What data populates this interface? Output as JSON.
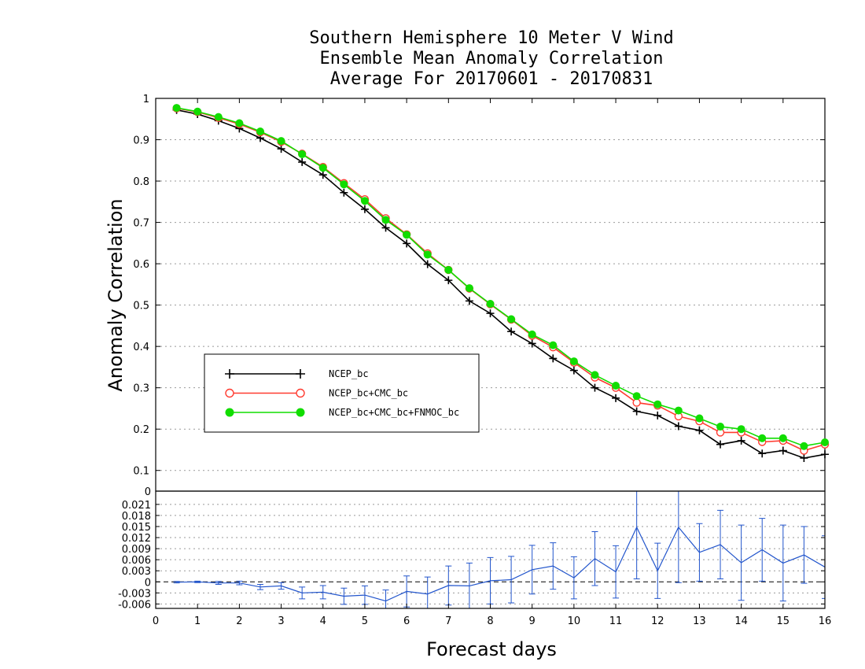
{
  "chart_data": [
    {
      "type": "line",
      "title_lines": [
        "Southern Hemisphere 10 Meter V Wind",
        "Ensemble Mean Anomaly Correlation",
        "Average For 20170601 - 20170831"
      ],
      "xlabel": "Forecast days",
      "ylabel": "Anomaly Correlation",
      "xlim": [
        0,
        16
      ],
      "ylim": [
        0.05,
        1
      ],
      "yticks": [
        "0.1",
        "0.2",
        "0.3",
        "0.4",
        "0.5",
        "0.6",
        "0.7",
        "0.8",
        "0.9",
        "1"
      ],
      "grid": true,
      "legend_position": "middle-left",
      "x": [
        0.5,
        1,
        1.5,
        2,
        2.5,
        3,
        3.5,
        4,
        4.5,
        5,
        5.5,
        6,
        6.5,
        7,
        7.5,
        8,
        8.5,
        9,
        9.5,
        10,
        10.5,
        11,
        11.5,
        12,
        12.5,
        13,
        13.5,
        14,
        14.5,
        15,
        15.5,
        16
      ],
      "series": [
        {
          "name": "NCEP_bc",
          "color": "#000000",
          "marker": "plus",
          "values": [
            0.972,
            0.962,
            0.946,
            0.927,
            0.904,
            0.878,
            0.846,
            0.815,
            0.772,
            0.732,
            0.687,
            0.649,
            0.599,
            0.56,
            0.51,
            0.48,
            0.436,
            0.407,
            0.371,
            0.342,
            0.3,
            0.275,
            0.243,
            0.233,
            0.207,
            0.197,
            0.163,
            0.172,
            0.141,
            0.148,
            0.13,
            0.139
          ]
        },
        {
          "name": "NCEP_bc+CMC_bc",
          "color": "#ff3b30",
          "marker": "open-circle",
          "values": [
            0.976,
            0.967,
            0.953,
            0.938,
            0.918,
            0.895,
            0.866,
            0.834,
            0.795,
            0.756,
            0.71,
            0.671,
            0.625,
            0.585,
            0.54,
            0.502,
            0.465,
            0.426,
            0.398,
            0.361,
            0.325,
            0.3,
            0.264,
            0.257,
            0.231,
            0.219,
            0.192,
            0.192,
            0.169,
            0.172,
            0.148,
            0.163
          ]
        },
        {
          "name": "NCEP_bc+CMC_bc+FNMOC_bc",
          "color": "#11dd00",
          "marker": "filled-circle",
          "values": [
            0.977,
            0.968,
            0.955,
            0.94,
            0.92,
            0.897,
            0.865,
            0.832,
            0.792,
            0.752,
            0.706,
            0.67,
            0.622,
            0.585,
            0.541,
            0.503,
            0.466,
            0.429,
            0.403,
            0.364,
            0.331,
            0.305,
            0.28,
            0.26,
            0.245,
            0.226,
            0.206,
            0.2,
            0.178,
            0.178,
            0.159,
            0.168
          ]
        }
      ]
    },
    {
      "type": "line",
      "xlabel": "Forecast days",
      "xlim": [
        0,
        16
      ],
      "ylim": [
        -0.0072,
        0.0246
      ],
      "xticks": [
        "0",
        "1",
        "2",
        "3",
        "4",
        "5",
        "6",
        "7",
        "8",
        "9",
        "10",
        "11",
        "12",
        "13",
        "14",
        "15",
        "16"
      ],
      "yticks": [
        {
          "value": 0.021,
          "label": "0.021"
        },
        {
          "value": 0.018,
          "label": "0.018"
        },
        {
          "value": 0.015,
          "label": "0.015"
        },
        {
          "value": 0.012,
          "label": "0.012"
        },
        {
          "value": 0.009,
          "label": "0.009"
        },
        {
          "value": 0.006,
          "label": "0.006"
        },
        {
          "value": 0.003,
          "label": "0.003"
        },
        {
          "value": 0,
          "label": "0"
        },
        {
          "value": -0.003,
          "label": "-0.003"
        },
        {
          "value": -0.006,
          "label": "-0.006"
        }
      ],
      "top_label": "0",
      "grid": true,
      "color": "#2255cc",
      "x": [
        0.5,
        1,
        1.5,
        2,
        2.5,
        3,
        3.5,
        4,
        4.5,
        5,
        5.5,
        6,
        6.5,
        7,
        7.5,
        8,
        8.5,
        9,
        9.5,
        10,
        10.5,
        11,
        11.5,
        12,
        12.5,
        13,
        13.5,
        14,
        14.5,
        15,
        15.5,
        16
      ],
      "values": [
        -0.0001,
        0.0,
        -0.0003,
        -0.0003,
        -0.0014,
        -0.0011,
        -0.003,
        -0.0028,
        -0.0039,
        -0.0036,
        -0.0052,
        -0.0026,
        -0.0033,
        -0.001,
        -0.0011,
        0.0003,
        0.0006,
        0.0033,
        0.0043,
        0.0011,
        0.0063,
        0.0027,
        0.0148,
        0.003,
        0.0148,
        0.008,
        0.0101,
        0.0052,
        0.0087,
        0.0051,
        0.0073,
        0.004
      ],
      "error": [
        0.0002,
        0.0002,
        0.0004,
        0.0005,
        0.0007,
        0.0009,
        0.0016,
        0.0018,
        0.0022,
        0.0025,
        0.003,
        0.0042,
        0.0046,
        0.0053,
        0.0062,
        0.0063,
        0.0063,
        0.0066,
        0.0063,
        0.0057,
        0.0073,
        0.0071,
        0.014,
        0.0075,
        0.015,
        0.0078,
        0.0093,
        0.0102,
        0.0085,
        0.0103,
        0.0077,
        0.0085
      ]
    }
  ]
}
